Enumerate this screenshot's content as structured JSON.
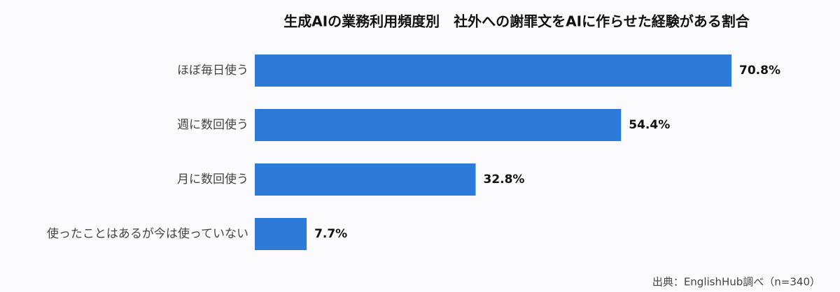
{
  "chart_data": {
    "type": "bar",
    "orientation": "horizontal",
    "title": "生成AIの業務利用頻度別　社外への謝罪文をAIに作らせた経験がある割合",
    "categories": [
      "ほぼ毎日使う",
      "週に数回使う",
      "月に数回使う",
      "使ったことはあるが今は使っていない"
    ],
    "values": [
      70.8,
      54.4,
      32.8,
      7.7
    ],
    "value_labels": [
      "70.8%",
      "54.4%",
      "32.8%",
      "7.7%"
    ],
    "color": "#2e7ad8",
    "source": "出典：EnglishHub調べ（n=340）"
  }
}
